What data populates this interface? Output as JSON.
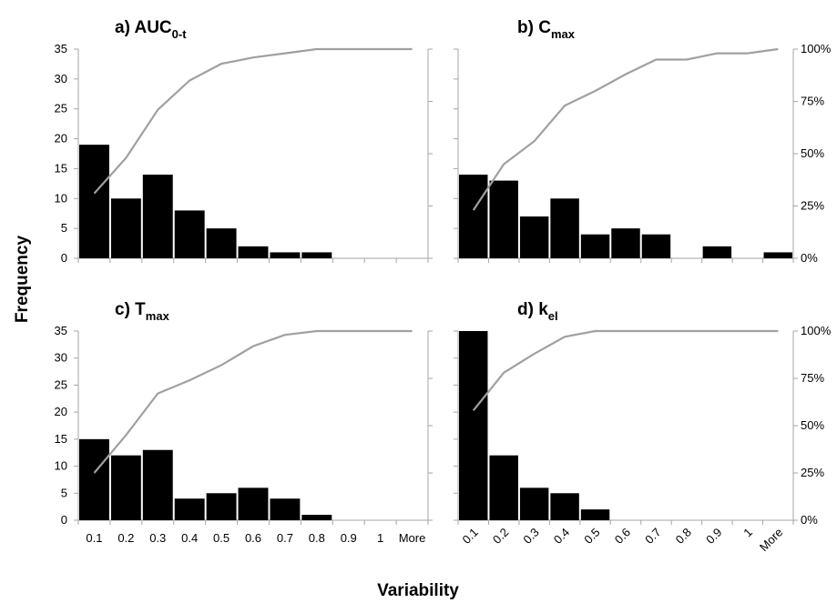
{
  "axis_labels": {
    "y": "Frequency",
    "x": "Variability"
  },
  "colors": {
    "bars": "#000000",
    "cumulative_line": "#a0a0a0",
    "axes": "#a6a6a6"
  },
  "chart_data": [
    {
      "type": "bar",
      "panel": "a",
      "title": {
        "prefix": "a) AUC",
        "subscript": "0-t"
      },
      "categories": [
        "0.1",
        "0.2",
        "0.3",
        "0.4",
        "0.5",
        "0.6",
        "0.7",
        "0.8",
        "0.9",
        "1",
        "More"
      ],
      "values": [
        19,
        10,
        14,
        8,
        5,
        2,
        1,
        1,
        0,
        0,
        0
      ],
      "cumulative_percent": [
        31,
        48,
        71,
        85,
        93,
        96,
        98,
        100,
        100,
        100,
        100
      ],
      "ylim": [
        0,
        35
      ],
      "yticks": [
        "0",
        "5",
        "10",
        "15",
        "20",
        "25",
        "30",
        "35"
      ],
      "y2ticks": [],
      "rotated_xticks": false
    },
    {
      "type": "bar",
      "panel": "b",
      "title": {
        "prefix": "b) C",
        "subscript": "max"
      },
      "categories": [
        "0.1",
        "0.2",
        "0.3",
        "0.4",
        "0.5",
        "0.6",
        "0.7",
        "0.8",
        "0.9",
        "1",
        "More"
      ],
      "values": [
        14,
        13,
        7,
        10,
        4,
        5,
        4,
        0,
        2,
        0,
        1
      ],
      "cumulative_percent": [
        23,
        45,
        56,
        73,
        80,
        88,
        95,
        95,
        98,
        98,
        100
      ],
      "ylim": [
        0,
        35
      ],
      "yticks": [],
      "y2ticks": [
        "0%",
        "25%",
        "50%",
        "75%",
        "100%"
      ],
      "rotated_xticks": false
    },
    {
      "type": "bar",
      "panel": "c",
      "title": {
        "prefix": "c) T",
        "subscript": "max"
      },
      "categories": [
        "0.1",
        "0.2",
        "0.3",
        "0.4",
        "0.5",
        "0.6",
        "0.7",
        "0.8",
        "0.9",
        "1",
        "More"
      ],
      "values": [
        15,
        12,
        13,
        4,
        5,
        6,
        4,
        1,
        0,
        0,
        0
      ],
      "cumulative_percent": [
        25,
        45,
        67,
        74,
        82,
        92,
        98,
        100,
        100,
        100,
        100
      ],
      "ylim": [
        0,
        35
      ],
      "yticks": [
        "0",
        "5",
        "10",
        "15",
        "20",
        "25",
        "30",
        "35"
      ],
      "y2ticks": [],
      "xticks_visible": true,
      "rotated_xticks": false
    },
    {
      "type": "bar",
      "panel": "d",
      "title": {
        "prefix": "d) k",
        "subscript": "el"
      },
      "categories": [
        "0.1",
        "0.2",
        "0.3",
        "0.4",
        "0.5",
        "0.6",
        "0.7",
        "0.8",
        "0.9",
        "1",
        "More"
      ],
      "values": [
        35,
        12,
        6,
        5,
        2,
        0,
        0,
        0,
        0,
        0,
        0
      ],
      "cumulative_percent": [
        58,
        78,
        88,
        97,
        100,
        100,
        100,
        100,
        100,
        100,
        100
      ],
      "ylim": [
        0,
        35
      ],
      "yticks": [],
      "y2ticks": [
        "0%",
        "25%",
        "50%",
        "75%",
        "100%"
      ],
      "xticks_visible": true,
      "rotated_xticks": true
    }
  ]
}
